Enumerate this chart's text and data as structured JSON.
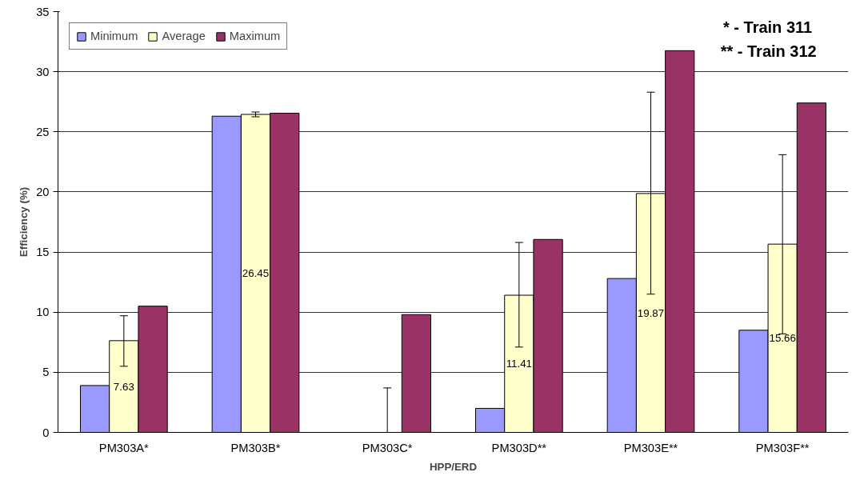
{
  "chart_data": {
    "type": "bar",
    "xlabel": "HPP/ERD",
    "ylabel": "Efficiency (%)",
    "categories": [
      "PM303A*",
      "PM303B*",
      "PM303C*",
      "PM303D**",
      "PM303E**",
      "PM303F**"
    ],
    "series": [
      {
        "name": "Minimum",
        "color": "#9999ff",
        "values": [
          3.9,
          26.3,
          0,
          2.0,
          12.8,
          8.5
        ]
      },
      {
        "name": "Average",
        "color": "#ffffcc",
        "values": [
          7.63,
          26.45,
          0,
          11.41,
          19.87,
          15.66
        ],
        "errors": [
          [
            5.5,
            9.7
          ],
          0.2,
          [
            0,
            3.7
          ],
          [
            7.1,
            15.8
          ],
          [
            11.5,
            28.3
          ],
          [
            8.2,
            23.1
          ]
        ],
        "value_labels": [
          "7.63",
          "26.45",
          null,
          "11.41",
          "19.87",
          "15.66"
        ]
      },
      {
        "name": "Maximum",
        "color": "#993366",
        "values": [
          10.5,
          26.55,
          9.8,
          16.05,
          31.75,
          27.4
        ]
      }
    ],
    "ylim": [
      0,
      35
    ],
    "yticks": [
      0,
      5,
      10,
      15,
      20,
      25,
      30,
      35
    ],
    "grid": "y",
    "legend": "top left",
    "annotations": [
      "*      -  Train 311",
      "**     -  Train 312"
    ]
  }
}
